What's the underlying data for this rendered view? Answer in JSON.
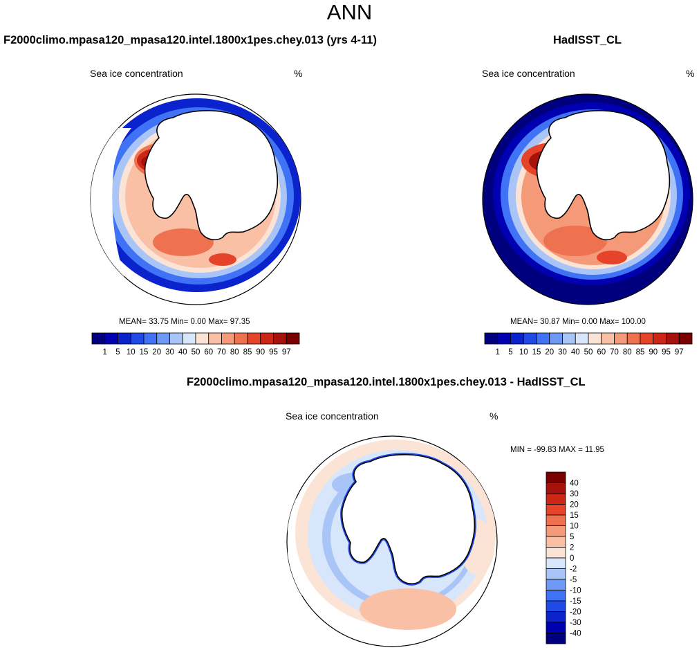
{
  "page_title": "ANN",
  "colors": {
    "model_levels": [
      "#00007f",
      "#0000b2",
      "#0a23cc",
      "#1f4ae6",
      "#3f72f5",
      "#6e98f6",
      "#a9c4f6",
      "#d7e6fb",
      "#fbe3d5",
      "#f9c0a6",
      "#f59a79",
      "#ef7250",
      "#e5442a",
      "#cc2617",
      "#a8120d",
      "#7a0000"
    ],
    "diff_levels": [
      "#00007f",
      "#0000b2",
      "#0a23cc",
      "#1f4ae6",
      "#3f72f5",
      "#6e98f6",
      "#a9c4f6",
      "#d7e6fb",
      "#fbe3d5",
      "#f9c0a6",
      "#f59a79",
      "#ef7250",
      "#e5442a",
      "#cc2617",
      "#a8120d",
      "#7a0000"
    ]
  },
  "chart_data": [
    {
      "type": "heatmap",
      "projection": "south-polar-stereographic",
      "title": "F2000climo.mpasa120_mpasa120.intel.1800x1pes.chey.013 (yrs 4-11)",
      "variable": "Sea ice concentration",
      "units": "%",
      "stats": "MEAN=  33.75  Min=   0.00  Max=  97.35",
      "mean": 33.75,
      "min": 0.0,
      "max": 97.35,
      "colorbar_orientation": "horizontal",
      "levels": [
        1,
        5,
        10,
        15,
        20,
        30,
        40,
        50,
        60,
        70,
        80,
        85,
        90,
        95,
        97
      ],
      "level_labels": [
        "1",
        "5",
        "10",
        "15",
        "20",
        "30",
        "40",
        "50",
        "60",
        "70",
        "80",
        "85",
        "90",
        "95",
        "97"
      ]
    },
    {
      "type": "heatmap",
      "projection": "south-polar-stereographic",
      "title": "HadISST_CL",
      "variable": "Sea ice concentration",
      "units": "%",
      "stats": "MEAN=  30.87  Min=   0.00  Max= 100.00",
      "mean": 30.87,
      "min": 0.0,
      "max": 100.0,
      "colorbar_orientation": "horizontal",
      "levels": [
        1,
        5,
        10,
        15,
        20,
        30,
        40,
        50,
        60,
        70,
        80,
        85,
        90,
        95,
        97
      ],
      "level_labels": [
        "1",
        "5",
        "10",
        "15",
        "20",
        "30",
        "40",
        "50",
        "60",
        "70",
        "80",
        "85",
        "90",
        "95",
        "97"
      ]
    },
    {
      "type": "heatmap",
      "projection": "south-polar-stereographic",
      "title": "F2000climo.mpasa120_mpasa120.intel.1800x1pes.chey.013 - HadISST_CL",
      "variable": "Sea ice concentration",
      "units": "%",
      "stats": "MIN = -99.83 MAX =  11.95",
      "min": -99.83,
      "max": 11.95,
      "colorbar_orientation": "vertical",
      "levels": [
        -40,
        -30,
        -20,
        -15,
        -10,
        -5,
        -2,
        0,
        2,
        5,
        10,
        15,
        20,
        30,
        40
      ],
      "level_labels": [
        "-40",
        "-30",
        "-20",
        "-15",
        "-10",
        "-5",
        "-2",
        "0",
        "2",
        "5",
        "10",
        "15",
        "20",
        "30",
        "40"
      ]
    }
  ]
}
